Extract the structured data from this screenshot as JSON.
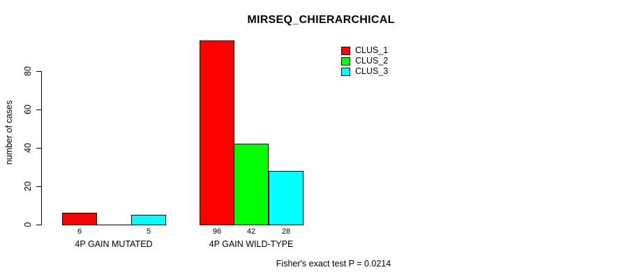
{
  "chart_data": {
    "type": "bar",
    "title": "MIRSEQ_CHIERARCHICAL",
    "ylabel": "number of cases",
    "xlabel": "",
    "categories": [
      "4P GAIN MUTATED",
      "4P GAIN WILD-TYPE"
    ],
    "series": [
      {
        "name": "CLUS_1",
        "color": "#ff0000",
        "values": [
          6,
          96
        ]
      },
      {
        "name": "CLUS_2",
        "color": "#00ff00",
        "values": [
          0,
          42
        ]
      },
      {
        "name": "CLUS_3",
        "color": "#00ffff",
        "values": [
          5,
          28
        ]
      }
    ],
    "bar_value_labels": [
      [
        "6",
        "",
        "5"
      ],
      [
        "96",
        "42",
        "28"
      ]
    ],
    "yticks": [
      0,
      20,
      40,
      60,
      80
    ],
    "ylim": [
      0,
      97
    ],
    "grid": false,
    "legend_position": "top-right",
    "bar_border_color": "#000000",
    "annotation": "Fisher's exact test P = 0.0214"
  }
}
